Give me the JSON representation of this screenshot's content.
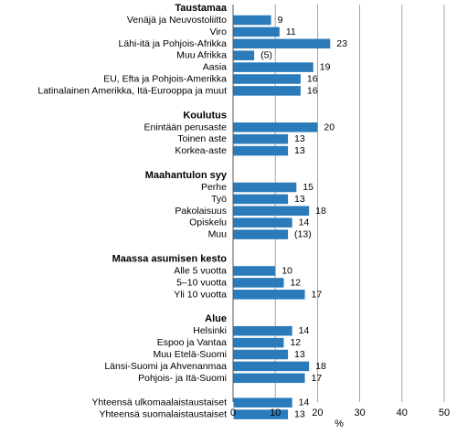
{
  "chart_data": {
    "type": "bar",
    "orientation": "horizontal",
    "title": "",
    "xlabel": "%",
    "ylabel": "",
    "xlim": [
      0,
      50
    ],
    "xticks": [
      0,
      10,
      20,
      30,
      40,
      50
    ],
    "grid": "vertical",
    "bar_color": "#2b7bba",
    "groups": [
      {
        "heading": "Taustamaa",
        "rows": [
          {
            "label": "Venäjä ja Neuvostoliitto",
            "value": 9,
            "value_label": "9"
          },
          {
            "label": "Viro",
            "value": 11,
            "value_label": "11"
          },
          {
            "label": "Lähi-itä ja Pohjois-Afrikka",
            "value": 23,
            "value_label": "23"
          },
          {
            "label": "Muu Afrikka",
            "value": 5,
            "value_label": "(5)"
          },
          {
            "label": "Aasia",
            "value": 19,
            "value_label": "19"
          },
          {
            "label": "EU, Efta ja Pohjois-Amerikka",
            "value": 16,
            "value_label": "16"
          },
          {
            "label": "Latinalainen Amerikka, Itä-Eurooppa ja muut",
            "value": 16,
            "value_label": "16"
          }
        ]
      },
      {
        "heading": "Koulutus",
        "rows": [
          {
            "label": "Enintään perusaste",
            "value": 20,
            "value_label": "20"
          },
          {
            "label": "Toinen aste",
            "value": 13,
            "value_label": "13"
          },
          {
            "label": "Korkea-aste",
            "value": 13,
            "value_label": "13"
          }
        ]
      },
      {
        "heading": "Maahantulon syy",
        "rows": [
          {
            "label": "Perhe",
            "value": 15,
            "value_label": "15"
          },
          {
            "label": "Työ",
            "value": 13,
            "value_label": "13"
          },
          {
            "label": "Pakolaisuus",
            "value": 18,
            "value_label": "18"
          },
          {
            "label": "Opiskelu",
            "value": 14,
            "value_label": "14"
          },
          {
            "label": "Muu",
            "value": 13,
            "value_label": "(13)"
          }
        ]
      },
      {
        "heading": "Maassa asumisen kesto",
        "rows": [
          {
            "label": "Alle 5 vuotta",
            "value": 10,
            "value_label": "10"
          },
          {
            "label": "5–10 vuotta",
            "value": 12,
            "value_label": "12"
          },
          {
            "label": "Yli 10 vuotta",
            "value": 17,
            "value_label": "17"
          }
        ]
      },
      {
        "heading": "Alue",
        "rows": [
          {
            "label": "Helsinki",
            "value": 14,
            "value_label": "14"
          },
          {
            "label": "Espoo ja Vantaa",
            "value": 12,
            "value_label": "12"
          },
          {
            "label": "Muu Etelä-Suomi",
            "value": 13,
            "value_label": "13"
          },
          {
            "label": "Länsi-Suomi ja Ahvenanmaa",
            "value": 18,
            "value_label": "18"
          },
          {
            "label": "Pohjois- ja Itä-Suomi",
            "value": 17,
            "value_label": "17"
          }
        ]
      },
      {
        "heading": "",
        "rows": [
          {
            "label": "Yhteensä ulkomaalaistaustaiset",
            "value": 14,
            "value_label": "14"
          },
          {
            "label": "Yhteensä suomalaistaustaiset",
            "value": 13,
            "value_label": "13"
          }
        ]
      }
    ]
  }
}
